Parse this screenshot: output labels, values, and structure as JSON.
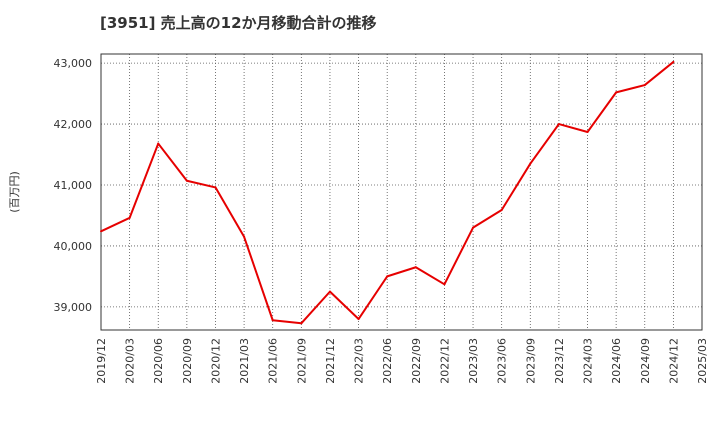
{
  "chart_data": {
    "type": "line",
    "title": "[3951]  売上高の12か月移動合計の推移",
    "xlabel": "",
    "ylabel": "(百万円)",
    "ylim": [
      38620,
      43150
    ],
    "yticks": [
      39000,
      40000,
      41000,
      42000,
      43000
    ],
    "ytick_labels": [
      "39,000",
      "40,000",
      "41,000",
      "42,000",
      "43,000"
    ],
    "grid": true,
    "line_color": "#e60000",
    "categories": [
      "2019/12",
      "2020/03",
      "2020/06",
      "2020/09",
      "2020/12",
      "2021/03",
      "2021/06",
      "2021/09",
      "2021/12",
      "2022/03",
      "2022/06",
      "2022/09",
      "2022/12",
      "2023/03",
      "2023/06",
      "2023/09",
      "2023/12",
      "2024/03",
      "2024/06",
      "2024/09",
      "2024/12",
      "2025/03"
    ],
    "series": [
      {
        "name": "売上高の12か月移動合計",
        "values": [
          40240,
          40460,
          41680,
          41070,
          40960,
          40150,
          38780,
          38730,
          39250,
          38800,
          39500,
          39650,
          39370,
          40300,
          40590,
          41350,
          42000,
          41870,
          42520,
          42640,
          43020,
          null
        ]
      }
    ]
  }
}
